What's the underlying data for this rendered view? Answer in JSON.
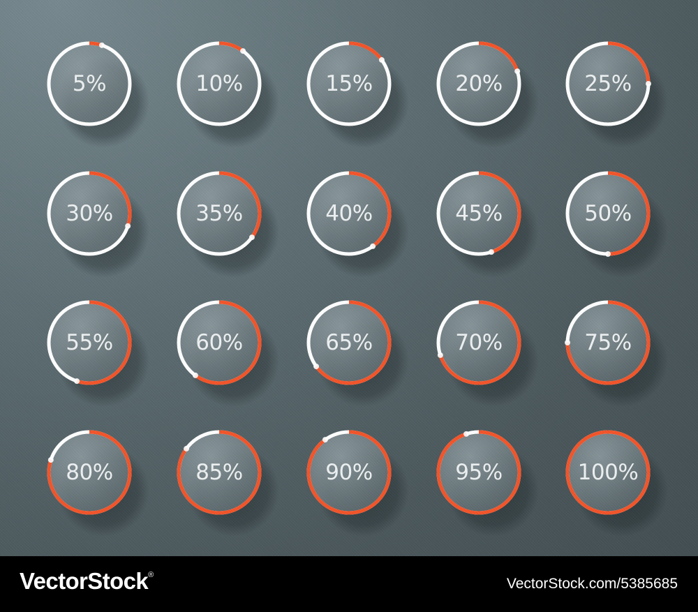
{
  "colors": {
    "background": "#5f6f74",
    "ring_track": "#ffffff",
    "ring_progress": "#f4552a",
    "disc_fill": "#78868b",
    "label": "#eef1f2",
    "footer": "#000000"
  },
  "gauges": [
    {
      "label": "5%",
      "value": 5
    },
    {
      "label": "10%",
      "value": 10
    },
    {
      "label": "15%",
      "value": 15
    },
    {
      "label": "20%",
      "value": 20
    },
    {
      "label": "25%",
      "value": 25
    },
    {
      "label": "30%",
      "value": 30
    },
    {
      "label": "35%",
      "value": 35
    },
    {
      "label": "40%",
      "value": 40
    },
    {
      "label": "45%",
      "value": 45
    },
    {
      "label": "50%",
      "value": 50
    },
    {
      "label": "55%",
      "value": 55
    },
    {
      "label": "60%",
      "value": 60
    },
    {
      "label": "65%",
      "value": 65
    },
    {
      "label": "70%",
      "value": 70
    },
    {
      "label": "75%",
      "value": 75
    },
    {
      "label": "80%",
      "value": 80
    },
    {
      "label": "85%",
      "value": 85
    },
    {
      "label": "90%",
      "value": 90
    },
    {
      "label": "95%",
      "value": 95
    },
    {
      "label": "100%",
      "value": 100
    }
  ],
  "footer": {
    "brand": "VectorStock",
    "registered_mark": "®",
    "image_id": "VectorStock.com/5385685"
  }
}
